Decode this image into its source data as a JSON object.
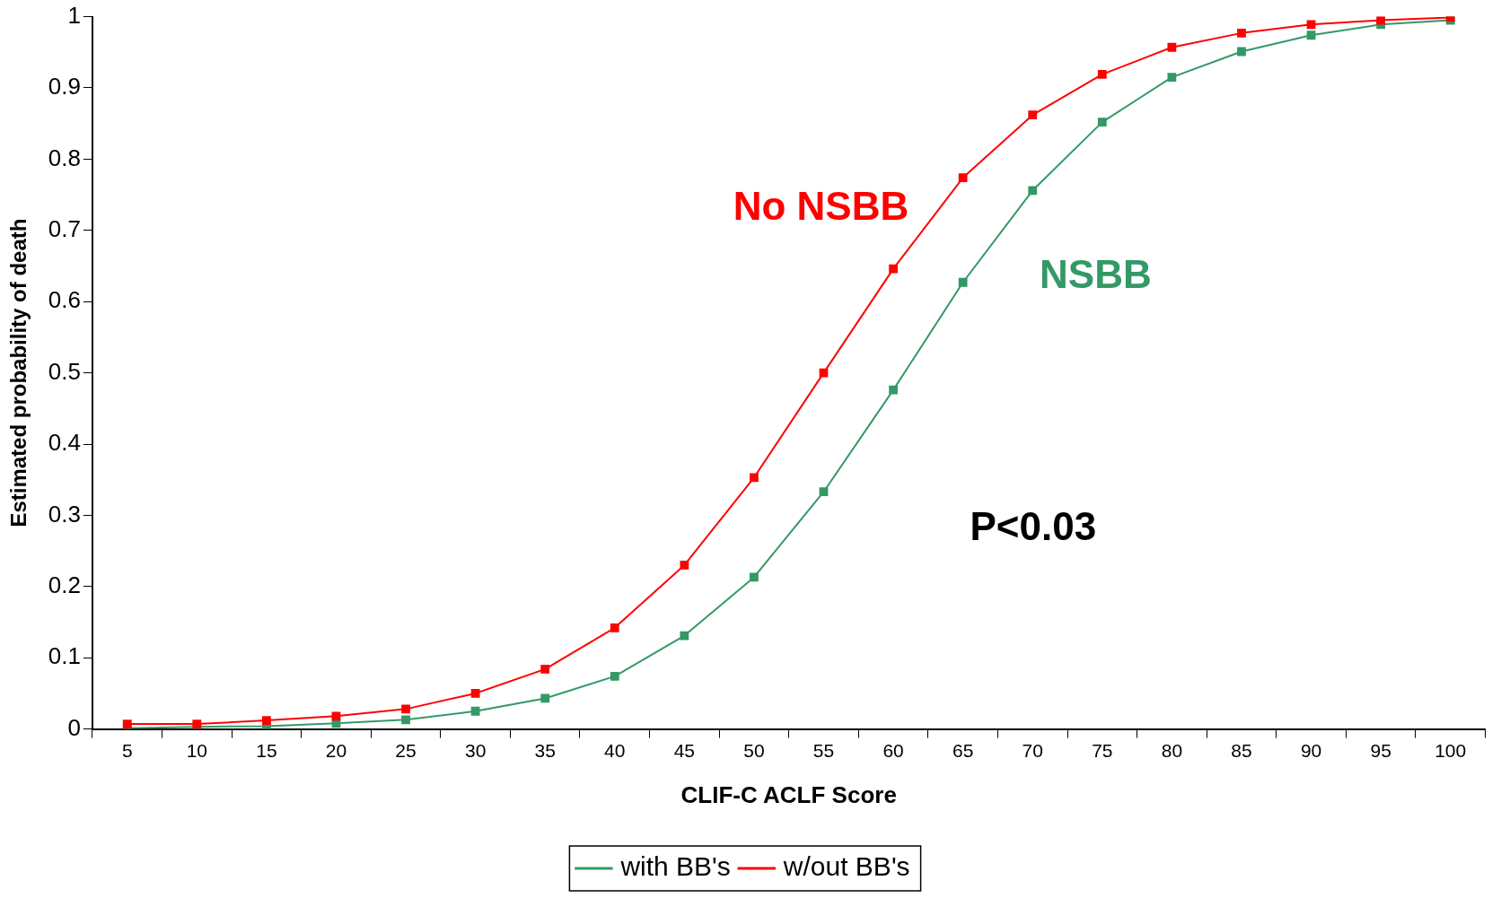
{
  "chart_data": {
    "type": "line",
    "xlabel": "CLIF-C ACLF Score",
    "ylabel": "Estimated probability of death",
    "categories": [
      "5",
      "10",
      "15",
      "20",
      "25",
      "30",
      "35",
      "40",
      "45",
      "50",
      "55",
      "60",
      "65",
      "70",
      "75",
      "80",
      "85",
      "90",
      "95",
      "100"
    ],
    "series": [
      {
        "name": "with BB's",
        "color": "#339966",
        "values": [
          0.001,
          0.003,
          0.004,
          0.008,
          0.013,
          0.025,
          0.043,
          0.074,
          0.131,
          0.213,
          0.333,
          0.476,
          0.627,
          0.756,
          0.852,
          0.915,
          0.951,
          0.974,
          0.989,
          0.995
        ]
      },
      {
        "name": "w/out BB's",
        "color": "#ff0000",
        "values": [
          0.007,
          0.007,
          0.012,
          0.018,
          0.028,
          0.05,
          0.084,
          0.142,
          0.23,
          0.353,
          0.5,
          0.646,
          0.774,
          0.862,
          0.919,
          0.957,
          0.977,
          0.989,
          0.995,
          0.999
        ]
      }
    ],
    "annotations": [
      "No NSBB",
      "NSBB",
      "P<0.03"
    ],
    "ylim": [
      0,
      1
    ],
    "yticks": [
      0,
      {
        "value": 0.1,
        "label": "0.1"
      },
      {
        "value": 0.2,
        "label": "0.2"
      },
      {
        "value": 0.3,
        "label": "0.3"
      },
      {
        "value": 0.4,
        "label": "0.4"
      },
      {
        "value": 0.5,
        "label": "0.5"
      },
      {
        "value": 0.6,
        "label": "0.6"
      },
      {
        "value": 0.7,
        "label": "0.7"
      },
      {
        "value": 0.8,
        "label": "0.8"
      },
      {
        "value": 0.9,
        "label": "0.9"
      },
      1
    ],
    "grid": false,
    "legend": "bottom",
    "marker": "square",
    "line_style": "solid"
  }
}
